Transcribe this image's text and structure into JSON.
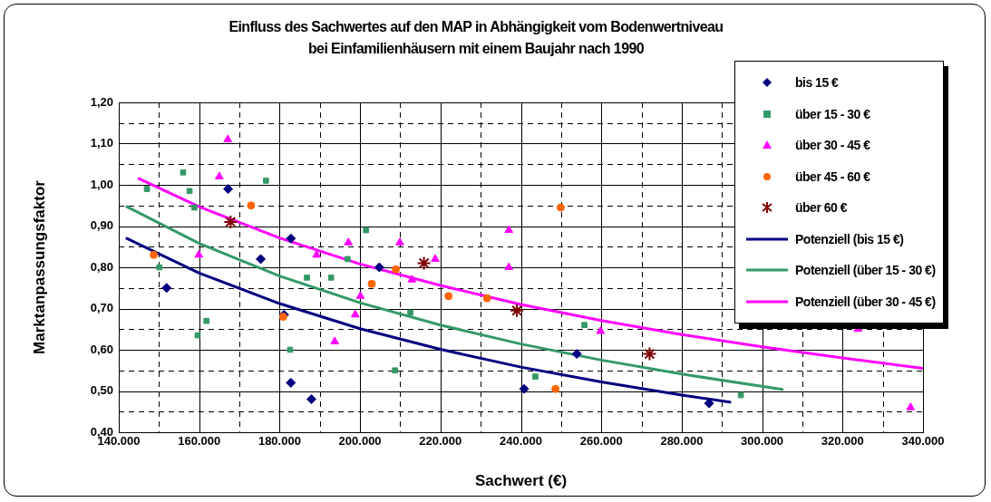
{
  "chart_data": {
    "type": "scatter",
    "title": "Einfluss des Sachwertes auf den MAP in Abhängigkeit vom Bodenwertniveau\nbei Einfamilienhäusern mit einem Baujahr nach 1990",
    "xlabel": "Sachwert (€)",
    "ylabel": "Marktanpassungsfaktor",
    "xlim": [
      140000,
      340000
    ],
    "xticks": [
      {
        "value": 140000,
        "label": "140.000"
      },
      {
        "value": 150000,
        "label": null
      },
      {
        "value": 160000,
        "label": "160.000"
      },
      {
        "value": 170000,
        "label": null
      },
      {
        "value": 180000,
        "label": "180.000"
      },
      {
        "value": 190000,
        "label": null
      },
      {
        "value": 200000,
        "label": "200.000"
      },
      {
        "value": 210000,
        "label": null
      },
      {
        "value": 220000,
        "label": "220.000"
      },
      {
        "value": 230000,
        "label": null
      },
      {
        "value": 240000,
        "label": "240.000"
      },
      {
        "value": 250000,
        "label": null
      },
      {
        "value": 260000,
        "label": "260.000"
      },
      {
        "value": 270000,
        "label": null
      },
      {
        "value": 280000,
        "label": "280.000"
      },
      {
        "value": 290000,
        "label": null
      },
      {
        "value": 300000,
        "label": "300.000"
      },
      {
        "value": 310000,
        "label": null
      },
      {
        "value": 320000,
        "label": "320.000"
      },
      {
        "value": 330000,
        "label": null
      },
      {
        "value": 340000,
        "label": "340.000"
      }
    ],
    "ylim": [
      0.4,
      1.2
    ],
    "yticks": [
      {
        "value": 0.4,
        "label": "0,40"
      },
      {
        "value": 0.45,
        "label": null
      },
      {
        "value": 0.5,
        "label": "0,50"
      },
      {
        "value": 0.55,
        "label": null
      },
      {
        "value": 0.6,
        "label": "0,60"
      },
      {
        "value": 0.65,
        "label": null
      },
      {
        "value": 0.7,
        "label": "0,70"
      },
      {
        "value": 0.75,
        "label": null
      },
      {
        "value": 0.8,
        "label": "0,80"
      },
      {
        "value": 0.85,
        "label": null
      },
      {
        "value": 0.9,
        "label": "0,90"
      },
      {
        "value": 0.95,
        "label": null
      },
      {
        "value": 1.0,
        "label": "1,00"
      },
      {
        "value": 1.05,
        "label": null
      },
      {
        "value": 1.1,
        "label": "1,10"
      },
      {
        "value": 1.15,
        "label": null
      },
      {
        "value": 1.2,
        "label": "1,20"
      }
    ],
    "grid": true,
    "legend": "top right",
    "series": [
      {
        "name": "bis 15 €",
        "type": "scatter",
        "marker": "diamond",
        "color": "#000080",
        "x": [
          151900,
          167200,
          175300,
          182800,
          181100,
          182800,
          187900,
          204800,
          240800,
          253900,
          286800
        ],
        "values": [
          0.75,
          0.99,
          0.82,
          0.87,
          0.685,
          0.52,
          0.48,
          0.8,
          0.505,
          0.59,
          0.47
        ]
      },
      {
        "name": "über 15 - 30 €",
        "type": "scatter",
        "marker": "square",
        "color": "#339966",
        "x": [
          147000,
          150100,
          156000,
          157600,
          158800,
          159600,
          161800,
          176600,
          182600,
          186800,
          192800,
          196900,
          201500,
          208700,
          212500,
          243600,
          255800,
          294700
        ],
        "values": [
          0.99,
          0.8,
          1.03,
          0.985,
          0.945,
          0.635,
          0.67,
          1.01,
          0.6,
          0.775,
          0.775,
          0.82,
          0.89,
          0.55,
          0.69,
          0.535,
          0.66,
          0.49
        ]
      },
      {
        "name": "über 30 - 45 €",
        "type": "scatter",
        "marker": "triangle",
        "color": "#ff00ff",
        "x": [
          167100,
          165000,
          159900,
          189200,
          193700,
          197100,
          198800,
          200100,
          209900,
          212900,
          218700,
          237000,
          237000,
          259800,
          323800,
          336900
        ],
        "values": [
          1.11,
          1.02,
          0.83,
          0.83,
          0.62,
          0.86,
          0.685,
          0.73,
          0.86,
          0.77,
          0.82,
          0.89,
          0.8,
          0.645,
          0.65,
          0.46
        ]
      },
      {
        "name": "über 45 - 60 €",
        "type": "scatter",
        "marker": "circle",
        "color": "#ff6600",
        "x": [
          148700,
          172900,
          180900,
          202900,
          208900,
          222000,
          231600,
          249900,
          248600
        ],
        "values": [
          0.83,
          0.95,
          0.68,
          0.76,
          0.795,
          0.73,
          0.725,
          0.945,
          0.505
        ]
      },
      {
        "name": "über 60 €",
        "type": "scatter",
        "marker": "cross",
        "color": "#800000",
        "x": [
          167800,
          215900,
          239000,
          272000
        ],
        "values": [
          0.91,
          0.81,
          0.695,
          0.59
        ]
      },
      {
        "name": "Potenziell (bis 15 €)",
        "type": "line",
        "marker": "none",
        "color": "#000080",
        "x": [
          142000,
          160000,
          180000,
          200000,
          220000,
          240000,
          260000,
          280000,
          292000
        ],
        "values": [
          0.87,
          0.786,
          0.712,
          0.651,
          0.601,
          0.558,
          0.522,
          0.49,
          0.473
        ]
      },
      {
        "name": "Potenziell (über 15 - 30 €)",
        "type": "line",
        "marker": "none",
        "color": "#339966",
        "x": [
          142000,
          160000,
          180000,
          200000,
          220000,
          240000,
          260000,
          280000,
          305000
        ],
        "values": [
          0.947,
          0.858,
          0.779,
          0.714,
          0.66,
          0.614,
          0.575,
          0.541,
          0.504
        ]
      },
      {
        "name": "Potenziell (über 30 - 45 €)",
        "type": "line",
        "marker": "none",
        "color": "#ff00ff",
        "x": [
          145000,
          160000,
          180000,
          200000,
          220000,
          240000,
          260000,
          280000,
          300000,
          320000,
          340000
        ],
        "values": [
          1.015,
          0.947,
          0.871,
          0.808,
          0.756,
          0.71,
          0.671,
          0.637,
          0.607,
          0.58,
          0.555
        ]
      }
    ]
  }
}
